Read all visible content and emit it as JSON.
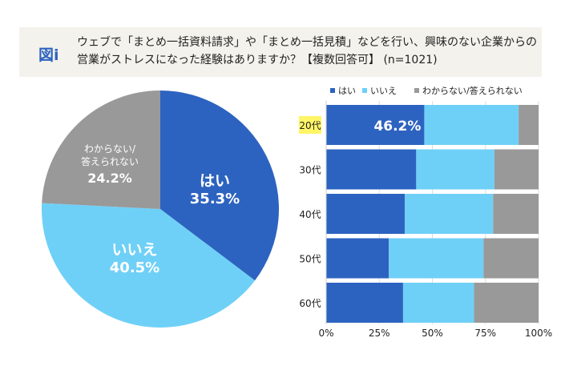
{
  "header": {
    "figure_label": "図i",
    "title": "ウェブで「まとめ一括資料請求」や「まとめ一括見積」などを行い、興味のない企業からの営業がストレスになった経験はありますか？【複数回答可】 (n=1021)"
  },
  "colors": {
    "yes": "#2d63c0",
    "no": "#6fd0f7",
    "unknown": "#999999",
    "highlight": "#fff566"
  },
  "chart_data": [
    {
      "type": "pie",
      "slices": [
        {
          "label": "はい",
          "value": 35.3,
          "display": "35.3%"
        },
        {
          "label": "いいえ",
          "value": 40.5,
          "display": "40.5%"
        },
        {
          "label": "わからない/答えられない",
          "value": 24.2,
          "display": "24.2%"
        }
      ]
    },
    {
      "type": "bar",
      "orientation": "horizontal",
      "stacked": true,
      "categories": [
        "20代",
        "30代",
        "40代",
        "50代",
        "60代"
      ],
      "highlighted_category": "20代",
      "series": [
        {
          "name": "はい",
          "values": [
            46.2,
            42.4,
            37.0,
            29.5,
            36.2
          ]
        },
        {
          "name": "いいえ",
          "values": [
            44.4,
            36.8,
            41.6,
            44.6,
            33.4
          ]
        },
        {
          "name": "わからない/答えられない",
          "values": [
            9.4,
            20.8,
            21.4,
            25.9,
            30.4
          ]
        }
      ],
      "data_labels": [
        {
          "category": "20代",
          "series": "はい",
          "text": "46.2%"
        }
      ],
      "xticks": [
        "0%",
        "25%",
        "50%",
        "75%",
        "100%"
      ],
      "xlim": [
        0,
        100
      ],
      "legend": "top",
      "grid": true
    }
  ]
}
